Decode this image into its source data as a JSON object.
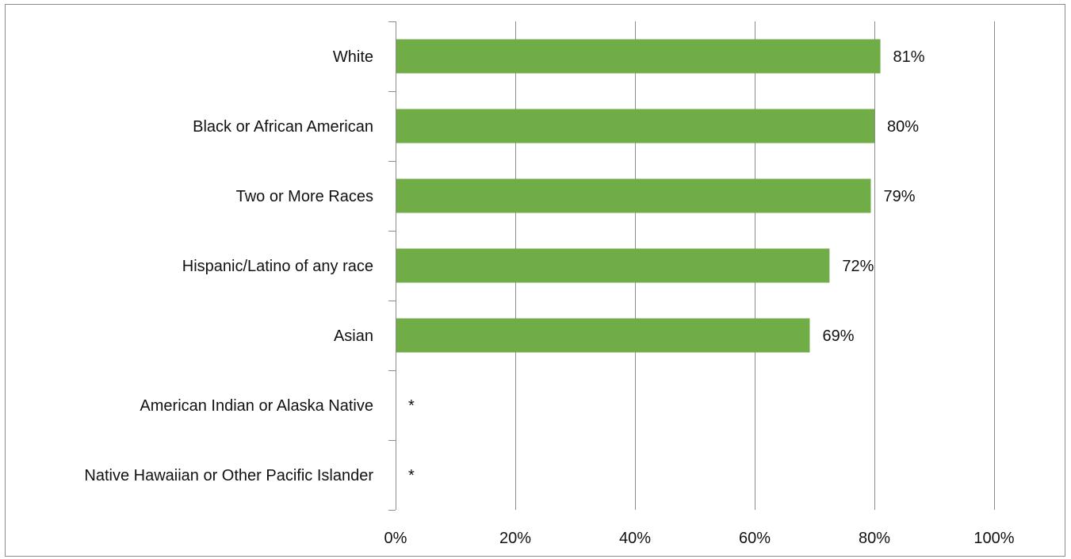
{
  "chart_data": {
    "type": "bar",
    "orientation": "horizontal",
    "categories": [
      "White",
      "Black or African American",
      "Two or More Races",
      "Hispanic/Latino of any race",
      "Asian",
      "American Indian or Alaska Native",
      "Native Hawaiian or Other Pacific Islander"
    ],
    "values": [
      81,
      80,
      79.4,
      72.5,
      69.2,
      null,
      null
    ],
    "data_labels": [
      "81%",
      "80%",
      "79%",
      "72%",
      "69%",
      "*",
      "*"
    ],
    "xlim": [
      0,
      100
    ],
    "x_ticks": [
      0,
      20,
      40,
      60,
      80,
      100
    ],
    "x_tick_labels": [
      "0%",
      "20%",
      "40%",
      "60%",
      "80%",
      "100%"
    ],
    "grid": "vertical",
    "bar_color": "#70AD47",
    "title": "",
    "xlabel": "",
    "ylabel": ""
  }
}
